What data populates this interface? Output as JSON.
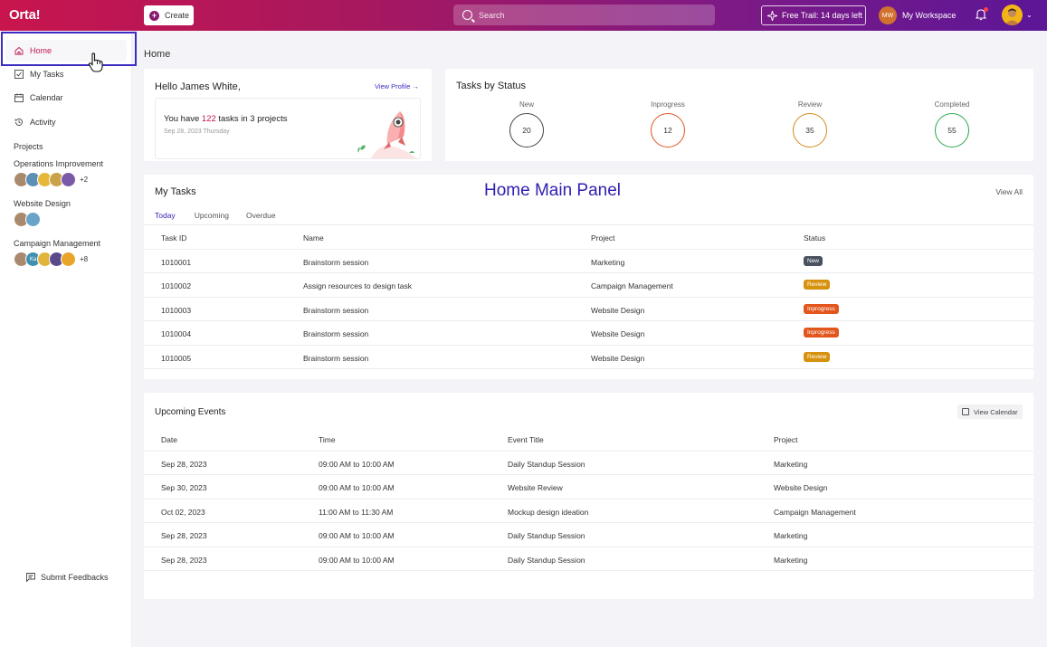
{
  "colors": {
    "accent": "#c0174f",
    "brand_blue": "#2e1fb0"
  },
  "topbar": {
    "logo": "Orta!",
    "create_label": "Create",
    "search_placeholder": "Search",
    "trial_label": "Free Trail: 14 days left",
    "workspace_initials": "MW",
    "workspace_label": "My Workspace"
  },
  "sidebar": {
    "nav": [
      {
        "label": "Home",
        "icon": "home-icon"
      },
      {
        "label": "My Tasks",
        "icon": "checkbox-icon"
      },
      {
        "label": "Calendar",
        "icon": "calendar-icon"
      },
      {
        "label": "Activity",
        "icon": "history-icon"
      }
    ],
    "projects_title": "Projects",
    "projects": [
      {
        "name": "Operations Improvement",
        "extra": "+2"
      },
      {
        "name": "Website Design",
        "extra": ""
      },
      {
        "name": "Campaign Management",
        "extra": "+8",
        "avatar_text": "Ka"
      }
    ],
    "submit_feedback": "Submit Feedbacks"
  },
  "main": {
    "page_title": "Home",
    "hello": {
      "greeting": "Hello James White,",
      "view_profile": "View Profile →",
      "tasks_prefix": "You have ",
      "tasks_count": "122",
      "tasks_suffix": " tasks in 3 projects",
      "date": "Sep 28, 2023 Thursday"
    },
    "status": {
      "title": "Tasks by Status",
      "items": [
        {
          "label": "New",
          "value": "20",
          "color": "#444444"
        },
        {
          "label": "Inprogress",
          "value": "12",
          "color": "#e0541e"
        },
        {
          "label": "Review",
          "value": "35",
          "color": "#d28a1a"
        },
        {
          "label": "Completed",
          "value": "55",
          "color": "#2aa84a"
        }
      ]
    },
    "my_tasks": {
      "title": "My Tasks",
      "panel_label": "Home Main Panel",
      "view_all": "View All",
      "tabs": [
        "Today",
        "Upcoming",
        "Overdue"
      ],
      "columns": [
        "Task ID",
        "Name",
        "Project",
        "Status"
      ],
      "rows": [
        {
          "id": "1010001",
          "name": "Brainstorm session",
          "project": "Marketing",
          "status": "New",
          "color": "#4a5260"
        },
        {
          "id": "1010002",
          "name": "Assign resources to design task",
          "project": "Campaign Management",
          "status": "Review",
          "color": "#d6920f"
        },
        {
          "id": "1010003",
          "name": "Brainstorm session",
          "project": "Website Design",
          "status": "Inprogress",
          "color": "#e2561c"
        },
        {
          "id": "1010004",
          "name": "Brainstorm session",
          "project": "Website Design",
          "status": "Inprogress",
          "color": "#e2561c"
        },
        {
          "id": "1010005",
          "name": "Brainstorm session",
          "project": "Website Design",
          "status": "Review",
          "color": "#d6920f"
        }
      ]
    },
    "events": {
      "title": "Upcoming Events",
      "view_calendar": "View Calendar",
      "columns": [
        "Date",
        "Time",
        "Event Title",
        "Project"
      ],
      "rows": [
        {
          "date": "Sep 28, 2023",
          "time": "09:00 AM to 10:00 AM",
          "title": "Daily Standup Session",
          "project": "Marketing"
        },
        {
          "date": "Sep 30, 2023",
          "time": "09:00 AM to 10:00 AM",
          "title": "Website Review",
          "project": "Website Design"
        },
        {
          "date": "Oct 02, 2023",
          "time": "11:00 AM to 11:30 AM",
          "title": "Mockup design ideation",
          "project": "Campaign Management"
        },
        {
          "date": "Sep 28, 2023",
          "time": "09:00 AM to 10:00 AM",
          "title": "Daily Standup Session",
          "project": "Marketing"
        },
        {
          "date": "Sep 28, 2023",
          "time": "09:00 AM to 10:00 AM",
          "title": "Daily Standup Session",
          "project": "Marketing"
        }
      ]
    }
  }
}
